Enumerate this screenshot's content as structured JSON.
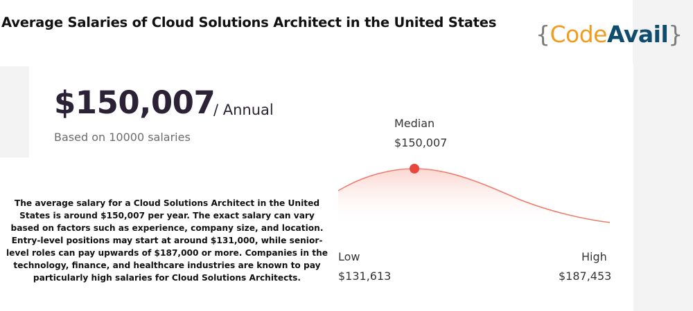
{
  "header": {
    "title": "Average Salaries of Cloud Solutions Architect  in the United States"
  },
  "logo": {
    "brace_open": "{",
    "code": "Code",
    "avail": "Avail",
    "brace_close": "}"
  },
  "salary": {
    "amount": "$150,007",
    "period": "/ Annual",
    "based_on": "Based on 10000 salaries"
  },
  "range": {
    "median_label": "Median",
    "median_value": "$150,007",
    "low_label": "Low",
    "low_value": "$131,613",
    "high_label": "High",
    "high_value": "$187,453"
  },
  "description": "The average salary for a Cloud Solutions Architect in the United States is around $150,007 per year. The exact salary can vary based on factors such as experience, company size, and location. Entry-level positions may start at around $131,000, while senior-level roles can pay upwards of $187,000 or more. Companies in the technology, finance, and healthcare industries are known to pay particularly high salaries for Cloud Solutions Architects.",
  "colors": {
    "curve": "#ef7b6a",
    "marker": "#e8453c",
    "brand_orange": "#f29b1e",
    "brand_navy": "#0f4c6e"
  }
}
